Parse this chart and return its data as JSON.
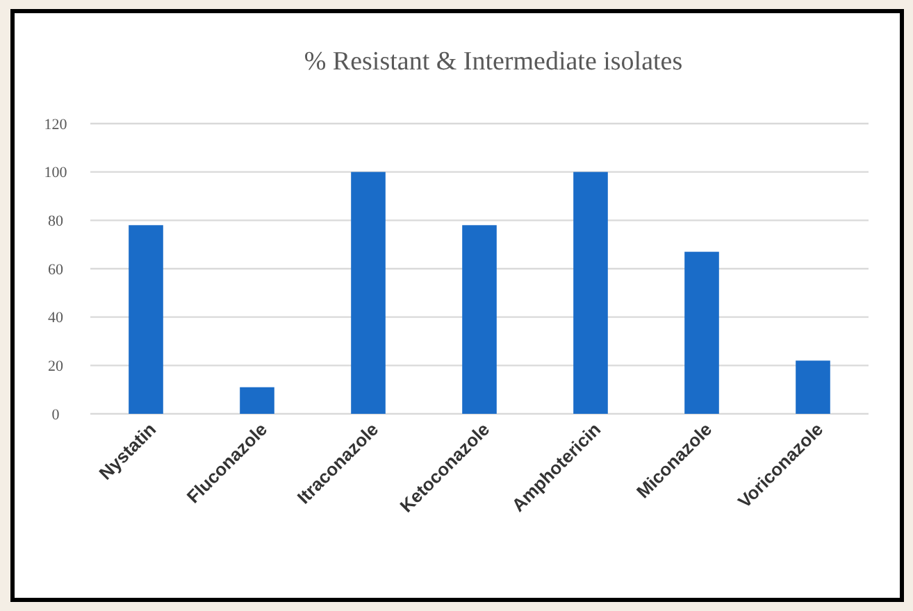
{
  "chart_data": {
    "type": "bar",
    "title": "% Resistant & Intermediate isolates",
    "categories": [
      "Nystatin",
      "Fluconazole",
      "Itraconazole",
      "Ketoconazole",
      "Amphotericin",
      "Miconazole",
      "Voriconazole"
    ],
    "values": [
      78,
      11,
      100,
      78,
      100,
      67,
      22
    ],
    "color": "#1a6cc8",
    "ylim": [
      0,
      120
    ],
    "yticks": [
      0,
      20,
      40,
      60,
      80,
      100,
      120
    ],
    "grid": "y"
  }
}
